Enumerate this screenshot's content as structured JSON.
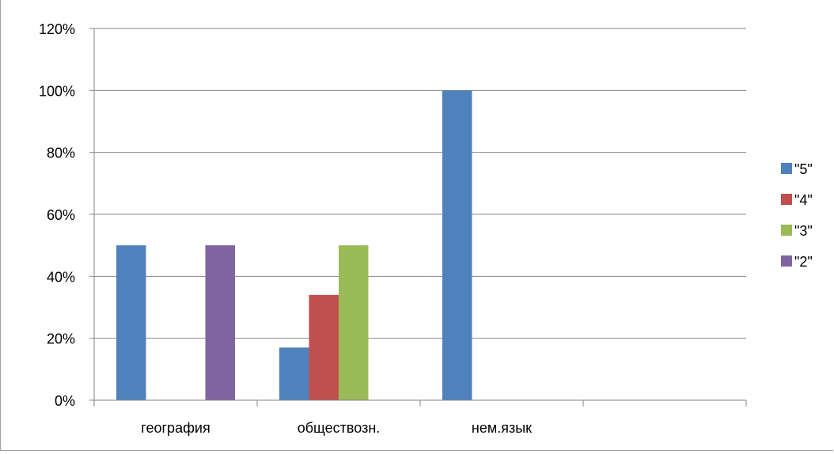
{
  "chart_data": {
    "type": "bar",
    "title": "",
    "xlabel": "",
    "ylabel": "",
    "categories": [
      "география",
      "обществозн.",
      "нем.язык",
      ""
    ],
    "series": [
      {
        "name": "\"5\"",
        "color": "#4F81BD",
        "values": [
          0.5,
          0.17,
          1.0,
          null
        ]
      },
      {
        "name": "\"4\"",
        "color": "#C0504D",
        "values": [
          null,
          0.34,
          null,
          null
        ]
      },
      {
        "name": "\"3\"",
        "color": "#9BBB59",
        "values": [
          null,
          0.5,
          null,
          null
        ]
      },
      {
        "name": "\"2\"",
        "color": "#8064A2",
        "values": [
          0.5,
          null,
          null,
          null
        ]
      }
    ],
    "ylim": [
      0,
      1.2
    ],
    "yticks": [
      0,
      0.2,
      0.4,
      0.6,
      0.8,
      1.0,
      1.2
    ],
    "ytick_labels": [
      "0%",
      "20%",
      "40%",
      "60%",
      "80%",
      "100%",
      "120%"
    ],
    "grid": true,
    "legend": "right"
  }
}
